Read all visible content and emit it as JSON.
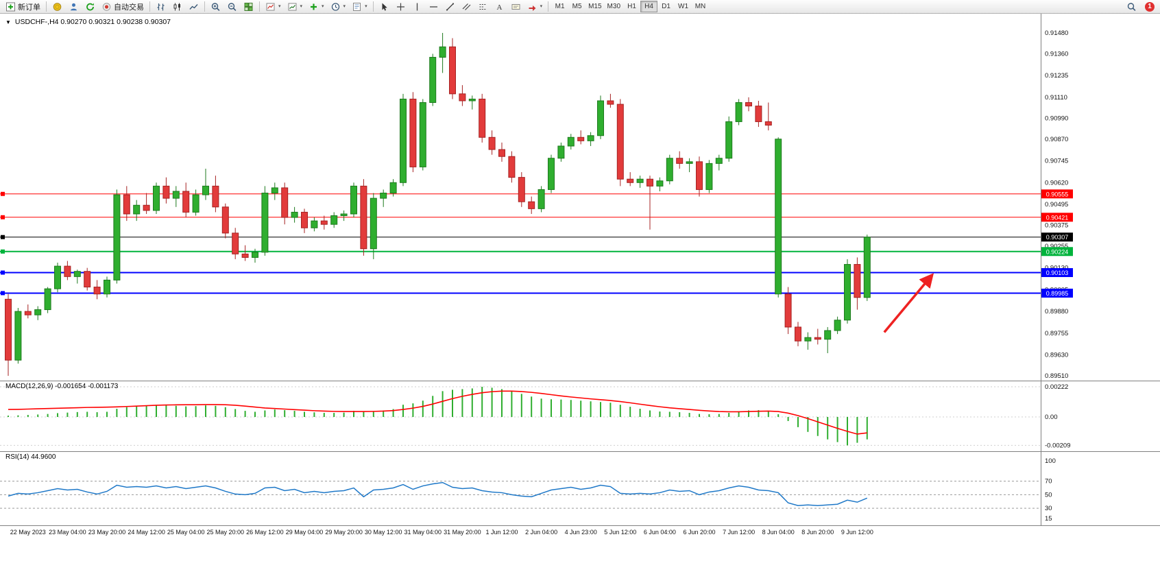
{
  "window": {
    "title_overlay": "USDCHF-,H4 0.90270 0.90321 0.90238 0.90307"
  },
  "toolbar": {
    "new_order_label": "新订单",
    "auto_trading_label": "自动交易",
    "timeframes": [
      "M1",
      "M5",
      "M15",
      "M30",
      "H1",
      "H4",
      "D1",
      "W1",
      "MN"
    ],
    "active_timeframe": "H4",
    "notification_badge": "1"
  },
  "macd_panel": {
    "label": "MACD(12,26,9) -0.001654 -0.001173"
  },
  "rsi_panel": {
    "label": "RSI(14) 44.9600"
  },
  "chart_data": {
    "type": "candlestick",
    "symbol": "USDCHF-",
    "timeframe": "H4",
    "ohlc_current": {
      "open": 0.9027,
      "high": 0.90321,
      "low": 0.90238,
      "close": 0.90307
    },
    "colors": {
      "bull": "#2fae2f",
      "bull_border": "#1d7a1d",
      "bear": "#e23b3b",
      "bear_border": "#a52222",
      "macd_hist": "#2fae2f",
      "macd_signal": "#ff0000",
      "rsi_line": "#1e78c8"
    },
    "price_axis": {
      "max": 0.9148,
      "min": 0.8951,
      "ticks": [
        "0.91480",
        "0.91360",
        "0.91235",
        "0.91110",
        "0.90990",
        "0.90870",
        "0.90745",
        "0.90620",
        "0.90495",
        "0.90375",
        "0.90255",
        "0.90130",
        "0.90005",
        "0.89880",
        "0.89755",
        "0.89630",
        "0.89510"
      ]
    },
    "hlines": [
      {
        "price": 0.90555,
        "label": "0.90555",
        "color": "#ff0000",
        "width": 1
      },
      {
        "price": 0.90421,
        "label": "0.90421",
        "color": "#ff0000",
        "width": 1
      },
      {
        "price": 0.90307,
        "label": "0.90307",
        "color": "#000000",
        "width": 1
      },
      {
        "price": 0.90224,
        "label": "0.90224",
        "color": "#00b33c",
        "width": 2
      },
      {
        "price": 0.90103,
        "label": "0.90103",
        "color": "#0000ff",
        "width": 2
      },
      {
        "price": 0.89985,
        "label": "0.89985",
        "color": "#0000ff",
        "width": 2
      }
    ],
    "annotation_arrow": {
      "dx1": 25,
      "dx2": 95,
      "from_price": 0.8976,
      "to_price": 0.9009,
      "color": "#ee2222"
    },
    "time_labels": [
      "22 May 2023",
      "23 May 04:00",
      "23 May 20:00",
      "24 May 12:00",
      "25 May 04:00",
      "25 May 20:00",
      "26 May 12:00",
      "29 May 04:00",
      "29 May 20:00",
      "30 May 12:00",
      "31 May 04:00",
      "31 May 20:00",
      "1 Jun 12:00",
      "2 Jun 04:00",
      "4 Jun 23:00",
      "5 Jun 12:00",
      "6 Jun 04:00",
      "6 Jun 20:00",
      "7 Jun 12:00",
      "8 Jun 04:00",
      "8 Jun 20:00",
      "9 Jun 12:00"
    ],
    "candles": [
      [
        0.8995,
        0.8998,
        0.8951,
        0.896
      ],
      [
        0.896,
        0.899,
        0.8958,
        0.8988
      ],
      [
        0.8988,
        0.8992,
        0.8984,
        0.8986
      ],
      [
        0.8986,
        0.8991,
        0.8983,
        0.8989
      ],
      [
        0.8989,
        0.9002,
        0.8987,
        0.9001
      ],
      [
        0.9001,
        0.9016,
        0.8999,
        0.9014
      ],
      [
        0.9014,
        0.9017,
        0.9006,
        0.9008
      ],
      [
        0.9008,
        0.9012,
        0.9004,
        0.9011
      ],
      [
        0.9011,
        0.9013,
        0.9,
        0.9002
      ],
      [
        0.9002,
        0.9006,
        0.8995,
        0.8998
      ],
      [
        0.8998,
        0.9008,
        0.8996,
        0.9006
      ],
      [
        0.9006,
        0.9058,
        0.9004,
        0.9055
      ],
      [
        0.9055,
        0.906,
        0.904,
        0.9044
      ],
      [
        0.9044,
        0.9052,
        0.904,
        0.9049
      ],
      [
        0.9049,
        0.9056,
        0.9044,
        0.9046
      ],
      [
        0.9046,
        0.9062,
        0.9044,
        0.906
      ],
      [
        0.906,
        0.9065,
        0.905,
        0.9053
      ],
      [
        0.9053,
        0.906,
        0.9048,
        0.9057
      ],
      [
        0.9057,
        0.9062,
        0.9042,
        0.9045
      ],
      [
        0.9045,
        0.9058,
        0.9043,
        0.9055
      ],
      [
        0.9055,
        0.907,
        0.9052,
        0.906
      ],
      [
        0.906,
        0.9066,
        0.9045,
        0.9048
      ],
      [
        0.9048,
        0.905,
        0.903,
        0.9033
      ],
      [
        0.9033,
        0.9036,
        0.9018,
        0.9021
      ],
      [
        0.9021,
        0.9026,
        0.9017,
        0.9019
      ],
      [
        0.9019,
        0.9024,
        0.9016,
        0.9022
      ],
      [
        0.9022,
        0.906,
        0.902,
        0.9056
      ],
      [
        0.9056,
        0.9062,
        0.9052,
        0.9059
      ],
      [
        0.9059,
        0.9062,
        0.9038,
        0.9042
      ],
      [
        0.9042,
        0.9048,
        0.9039,
        0.9045
      ],
      [
        0.9045,
        0.9047,
        0.9033,
        0.9036
      ],
      [
        0.9036,
        0.9042,
        0.9034,
        0.904
      ],
      [
        0.904,
        0.9043,
        0.9035,
        0.9038
      ],
      [
        0.9038,
        0.9045,
        0.9036,
        0.9043
      ],
      [
        0.9043,
        0.9046,
        0.904,
        0.9044
      ],
      [
        0.9044,
        0.9062,
        0.9042,
        0.906
      ],
      [
        0.906,
        0.9064,
        0.902,
        0.9024
      ],
      [
        0.9024,
        0.9056,
        0.9018,
        0.9053
      ],
      [
        0.9053,
        0.9058,
        0.9048,
        0.9056
      ],
      [
        0.9056,
        0.9064,
        0.9054,
        0.9062
      ],
      [
        0.9062,
        0.9113,
        0.906,
        0.911
      ],
      [
        0.911,
        0.9114,
        0.9068,
        0.9071
      ],
      [
        0.9071,
        0.911,
        0.9069,
        0.9108
      ],
      [
        0.9108,
        0.9136,
        0.9106,
        0.9134
      ],
      [
        0.9134,
        0.9148,
        0.9125,
        0.914
      ],
      [
        0.914,
        0.9145,
        0.911,
        0.9113
      ],
      [
        0.9113,
        0.9118,
        0.9106,
        0.9109
      ],
      [
        0.9109,
        0.9112,
        0.9104,
        0.911
      ],
      [
        0.911,
        0.9113,
        0.9085,
        0.9088
      ],
      [
        0.9088,
        0.9092,
        0.9078,
        0.9081
      ],
      [
        0.9081,
        0.9085,
        0.9074,
        0.9077
      ],
      [
        0.9077,
        0.908,
        0.9062,
        0.9065
      ],
      [
        0.9065,
        0.9068,
        0.9048,
        0.9051
      ],
      [
        0.9051,
        0.9054,
        0.9044,
        0.9047
      ],
      [
        0.9047,
        0.906,
        0.9045,
        0.9058
      ],
      [
        0.9058,
        0.9078,
        0.9056,
        0.9076
      ],
      [
        0.9076,
        0.9085,
        0.9074,
        0.9083
      ],
      [
        0.9083,
        0.909,
        0.9081,
        0.9088
      ],
      [
        0.9088,
        0.9092,
        0.9084,
        0.9086
      ],
      [
        0.9086,
        0.9091,
        0.9083,
        0.9089
      ],
      [
        0.9089,
        0.9112,
        0.9087,
        0.9109
      ],
      [
        0.9109,
        0.9113,
        0.9105,
        0.9107
      ],
      [
        0.9107,
        0.911,
        0.906,
        0.9064
      ],
      [
        0.9064,
        0.9068,
        0.906,
        0.9062
      ],
      [
        0.9062,
        0.9066,
        0.9059,
        0.9064
      ],
      [
        0.9064,
        0.9066,
        0.9035,
        0.906
      ],
      [
        0.906,
        0.9065,
        0.9057,
        0.9063
      ],
      [
        0.9063,
        0.9078,
        0.9061,
        0.9076
      ],
      [
        0.9076,
        0.908,
        0.907,
        0.9073
      ],
      [
        0.9073,
        0.9076,
        0.9068,
        0.9074
      ],
      [
        0.9074,
        0.9077,
        0.9054,
        0.9058
      ],
      [
        0.9058,
        0.9075,
        0.9056,
        0.9073
      ],
      [
        0.9073,
        0.9078,
        0.9069,
        0.9076
      ],
      [
        0.9076,
        0.91,
        0.9074,
        0.9097
      ],
      [
        0.9097,
        0.911,
        0.9095,
        0.9108
      ],
      [
        0.9108,
        0.9111,
        0.9103,
        0.9106
      ],
      [
        0.9106,
        0.9109,
        0.9094,
        0.9097
      ],
      [
        0.9097,
        0.9108,
        0.9092,
        0.9095
      ],
      [
        0.8998,
        0.9088,
        0.8996,
        0.9087
      ],
      [
        0.8998,
        0.9002,
        0.8975,
        0.8979
      ],
      [
        0.8979,
        0.8982,
        0.8968,
        0.8971
      ],
      [
        0.8971,
        0.8976,
        0.8966,
        0.8973
      ],
      [
        0.8973,
        0.8978,
        0.8969,
        0.8972
      ],
      [
        0.8972,
        0.8979,
        0.8964,
        0.8977
      ],
      [
        0.8977,
        0.8985,
        0.8975,
        0.8983
      ],
      [
        0.8983,
        0.9018,
        0.8981,
        0.9015
      ],
      [
        0.9015,
        0.9019,
        0.8989,
        0.8996
      ],
      [
        0.8996,
        0.90321,
        0.8994,
        0.90307
      ]
    ],
    "macd": {
      "label_values": [
        -0.001654,
        -0.001173
      ],
      "scale_max": 0.00222,
      "axis_ticks": [
        {
          "label": "0.00222",
          "value": 0.00222
        },
        {
          "label": "0.00",
          "value": 0
        },
        {
          "label": "-0.00209",
          "value": -0.00209
        }
      ],
      "histogram": [
        0.0001,
        0.00012,
        0.00015,
        0.00018,
        0.00022,
        0.00028,
        0.00032,
        0.00036,
        0.00038,
        0.00035,
        0.00038,
        0.0006,
        0.00072,
        0.00078,
        0.0008,
        0.00085,
        0.00085,
        0.00082,
        0.00078,
        0.0008,
        0.00085,
        0.00082,
        0.00072,
        0.00058,
        0.00045,
        0.00038,
        0.00048,
        0.00055,
        0.0005,
        0.00045,
        0.00038,
        0.00034,
        0.0003,
        0.0003,
        0.00032,
        0.00045,
        0.0004,
        0.00042,
        0.00048,
        0.00058,
        0.0009,
        0.001,
        0.0012,
        0.00155,
        0.0019,
        0.002,
        0.00205,
        0.0021,
        0.00222,
        0.00215,
        0.00205,
        0.0019,
        0.0017,
        0.0015,
        0.00135,
        0.0013,
        0.00128,
        0.00125,
        0.0012,
        0.00115,
        0.0011,
        0.00105,
        0.0009,
        0.00075,
        0.0006,
        0.00048,
        0.0004,
        0.00038,
        0.00035,
        0.0003,
        0.00022,
        0.0002,
        0.00022,
        0.0003,
        0.00042,
        0.00048,
        0.0005,
        0.00045,
        0.0002,
        -0.0003,
        -0.00075,
        -0.0011,
        -0.0014,
        -0.00165,
        -0.00185,
        -0.00209,
        -0.0019,
        -0.00165
      ],
      "signal": [
        0.00055,
        0.00056,
        0.00058,
        0.0006,
        0.00062,
        0.00064,
        0.00066,
        0.00068,
        0.0007,
        0.00071,
        0.00072,
        0.00074,
        0.00077,
        0.0008,
        0.00083,
        0.00086,
        0.00088,
        0.00089,
        0.0009,
        0.0009,
        0.00091,
        0.00091,
        0.0009,
        0.00086,
        0.0008,
        0.00073,
        0.00066,
        0.00062,
        0.00058,
        0.00054,
        0.0005,
        0.00046,
        0.00043,
        0.00041,
        0.0004,
        0.0004,
        0.0004,
        0.00041,
        0.00043,
        0.00047,
        0.00055,
        0.00065,
        0.00078,
        0.00095,
        0.00115,
        0.00135,
        0.00152,
        0.00166,
        0.00178,
        0.00186,
        0.0019,
        0.0019,
        0.00187,
        0.00181,
        0.00173,
        0.00164,
        0.00155,
        0.00147,
        0.0014,
        0.00133,
        0.00127,
        0.00121,
        0.00113,
        0.00104,
        0.00094,
        0.00084,
        0.00075,
        0.00067,
        0.00061,
        0.00055,
        0.00049,
        0.00044,
        0.0004,
        0.00038,
        0.00038,
        0.0004,
        0.00042,
        0.00043,
        0.0004,
        0.00028,
        0.0001,
        -0.00012,
        -0.00036,
        -0.0006,
        -0.00084,
        -0.00106,
        -0.00126,
        -0.00117
      ]
    },
    "rsi": {
      "current_value": 44.96,
      "axis_ticks": [
        "100",
        "70",
        "50",
        "30",
        "15"
      ],
      "dashed_levels": [
        70,
        50,
        30
      ],
      "values": [
        48,
        52,
        51,
        53,
        56,
        59,
        57,
        58,
        54,
        51,
        55,
        64,
        61,
        62,
        61,
        63,
        60,
        62,
        59,
        61,
        63,
        60,
        55,
        51,
        50,
        52,
        60,
        61,
        56,
        58,
        53,
        55,
        53,
        55,
        56,
        60,
        47,
        57,
        58,
        60,
        65,
        58,
        63,
        66,
        68,
        61,
        59,
        60,
        56,
        54,
        53,
        50,
        48,
        47,
        52,
        57,
        59,
        61,
        58,
        60,
        64,
        62,
        52,
        51,
        52,
        51,
        53,
        57,
        55,
        56,
        50,
        54,
        56,
        60,
        63,
        61,
        57,
        56,
        53,
        38,
        34,
        35,
        34,
        35,
        36,
        42,
        39,
        45
      ]
    }
  }
}
